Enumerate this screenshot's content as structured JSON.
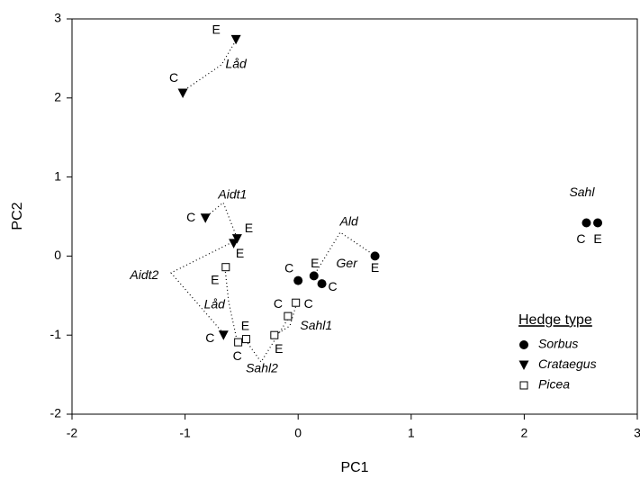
{
  "chart_data": {
    "type": "scatter",
    "xlabel": "PC1",
    "ylabel": "PC2",
    "xlim": [
      -2,
      3
    ],
    "ylim": [
      -2,
      3
    ],
    "xticks": [
      -2,
      -1,
      0,
      1,
      2,
      3
    ],
    "yticks": [
      -2,
      -1,
      0,
      1,
      2,
      3
    ],
    "legend_title": "Hedge type",
    "legend_position": "lower right",
    "series": [
      {
        "name": "Sorbus",
        "marker": "circle",
        "color": "#000000",
        "x": [
          0.0,
          0.14,
          0.21,
          0.68,
          2.55,
          2.65
        ],
        "y": [
          -0.31,
          -0.25,
          -0.35,
          0.0,
          0.42,
          0.42
        ],
        "point_labels": [
          "C",
          "E",
          "C",
          "E",
          "C",
          "E"
        ]
      },
      {
        "name": "Crataegus",
        "marker": "triangle-down",
        "color": "#000000",
        "x": [
          -0.55,
          -1.02,
          -0.82,
          -0.54,
          -0.57,
          -0.66
        ],
        "y": [
          2.74,
          2.06,
          0.48,
          0.22,
          0.16,
          -1.0
        ],
        "point_labels": [
          "E",
          "C",
          "C",
          "E",
          "E",
          "C"
        ]
      },
      {
        "name": "Picea",
        "marker": "square-open",
        "color": "#000000",
        "x": [
          -0.64,
          -0.53,
          -0.46,
          -0.09,
          -0.21,
          -0.02
        ],
        "y": [
          -0.14,
          -1.09,
          -1.05,
          -0.76,
          -1.0,
          -0.59
        ],
        "point_labels": [
          "E",
          "C",
          "E",
          "C",
          "E",
          "C"
        ]
      }
    ],
    "annotations": [
      {
        "text": "Låd",
        "x": -0.55,
        "y": 2.42
      },
      {
        "text": "Aidt1",
        "x": -0.58,
        "y": 0.77
      },
      {
        "text": "Aidt2",
        "x": -1.36,
        "y": -0.25
      },
      {
        "text": "Låd",
        "x": -0.74,
        "y": -0.62
      },
      {
        "text": "Sahl2",
        "x": -0.32,
        "y": -1.43
      },
      {
        "text": "Sahl1",
        "x": 0.16,
        "y": -0.89
      },
      {
        "text": "Ger",
        "x": 0.43,
        "y": -0.1
      },
      {
        "text": "Ald",
        "x": 0.45,
        "y": 0.43
      },
      {
        "text": "Sahl",
        "x": 2.51,
        "y": 0.8
      }
    ]
  }
}
